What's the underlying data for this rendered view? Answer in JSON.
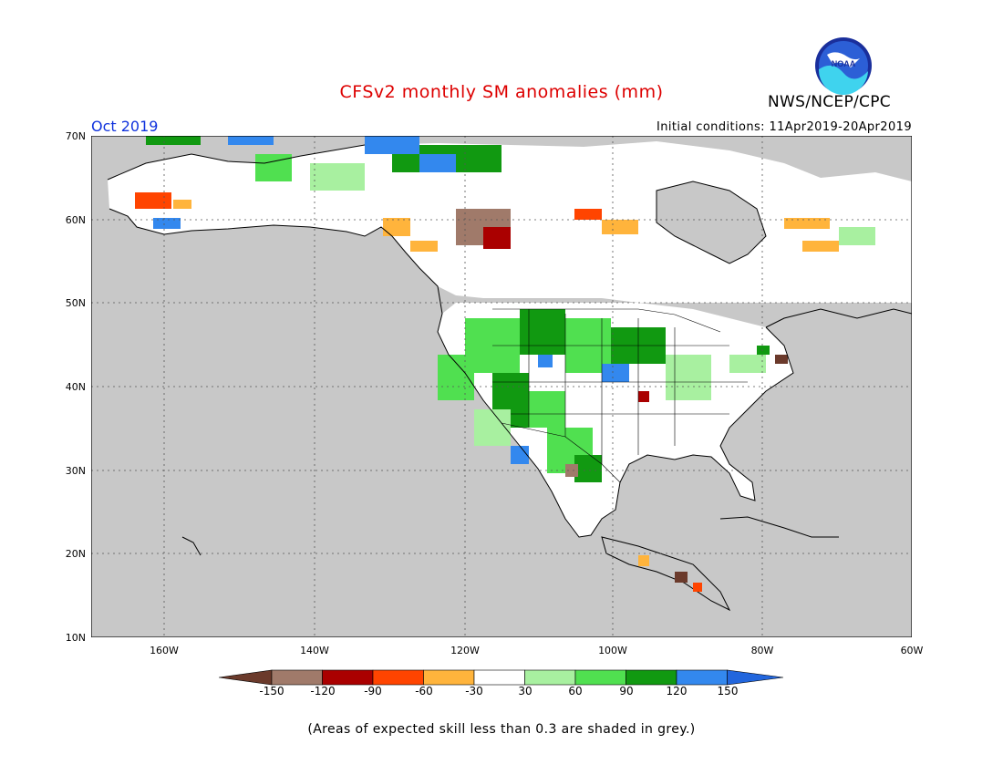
{
  "title": "CFSv2 monthly SM anomalies (mm)",
  "organization": "NWS/NCEP/CPC",
  "logo_text": "NOAA",
  "valid_month": "Oct 2019",
  "initial_conditions": "Initial conditions: 11Apr2019-20Apr2019",
  "footnote": "(Areas of expected skill less than 0.3 are shaded in grey.)",
  "lat_labels": [
    "70N",
    "60N",
    "50N",
    "40N",
    "30N",
    "20N",
    "10N"
  ],
  "lon_labels": [
    "160W",
    "140W",
    "120W",
    "100W",
    "80W",
    "60W"
  ],
  "legend": {
    "tick_labels": [
      "-150",
      "-120",
      "-90",
      "-60",
      "-30",
      "30",
      "60",
      "90",
      "120",
      "150"
    ],
    "colors": [
      "#6b3a2b",
      "#a07a6a",
      "#aa0000",
      "#ff4400",
      "#ffb43c",
      "#ffffff",
      "#a8f0a0",
      "#50e050",
      "#119911",
      "#3388ee",
      "#2266dd"
    ]
  },
  "colors": {
    "ocean_skill_grey": "#c8c8c8",
    "title_red": "#dd0000",
    "month_blue": "#1133dd"
  }
}
